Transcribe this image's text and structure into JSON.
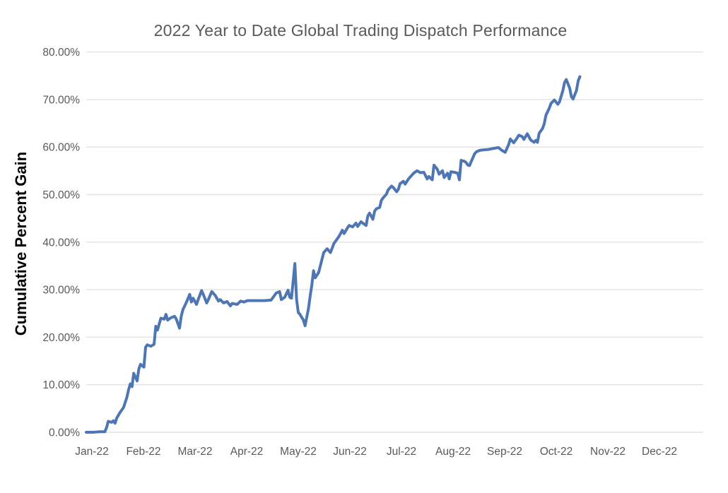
{
  "chart": {
    "title": "2022 Year to Date Global Trading Dispatch Performance",
    "y_axis_title": "Cumulative Percent Gain"
  },
  "chart_data": {
    "type": "line",
    "title": "2022 Year to Date Global Trading Dispatch Performance",
    "xlabel": "",
    "ylabel": "Cumulative Percent Gain",
    "x_tick_labels": [
      "Jan-22",
      "Feb-22",
      "Mar-22",
      "Apr-22",
      "May-22",
      "Jun-22",
      "Jul-22",
      "Aug-22",
      "Sep-22",
      "Oct-22",
      "Nov-22",
      "Dec-22"
    ],
    "y_tick_labels": [
      "0.00%",
      "10.00%",
      "20.00%",
      "30.00%",
      "40.00%",
      "50.00%",
      "60.00%",
      "70.00%",
      "80.00%"
    ],
    "ylim": [
      0,
      80
    ],
    "y_tick_step": 10,
    "grid": "horizontal",
    "legend": "none",
    "colors": {
      "line": "#4D76B2",
      "gridline": "#E2E2E2",
      "axis_text": "#595959",
      "title_text": "#595959",
      "background": "#FFFFFF"
    },
    "series": [
      {
        "name": "Cumulative Percent Gain",
        "x_unit": "days since Jan 1 2022",
        "y_unit": "percent",
        "points": [
          [
            0,
            0
          ],
          [
            4,
            0
          ],
          [
            8,
            0.1
          ],
          [
            11,
            0.1
          ],
          [
            12,
            1.0
          ],
          [
            13,
            2.3
          ],
          [
            15,
            2.1
          ],
          [
            16,
            2.4
          ],
          [
            17,
            1.9
          ],
          [
            18,
            3.0
          ],
          [
            20,
            4.2
          ],
          [
            22,
            5.2
          ],
          [
            23,
            6.3
          ],
          [
            24,
            7.4
          ],
          [
            25,
            9.0
          ],
          [
            26,
            10.2
          ],
          [
            27,
            9.6
          ],
          [
            28,
            12.4
          ],
          [
            30,
            10.8
          ],
          [
            31,
            13.3
          ],
          [
            32,
            14.3
          ],
          [
            34,
            13.7
          ],
          [
            35,
            17.9
          ],
          [
            36,
            18.4
          ],
          [
            38,
            18.1
          ],
          [
            40,
            18.5
          ],
          [
            41,
            22.3
          ],
          [
            42,
            21.5
          ],
          [
            44,
            24.0
          ],
          [
            46,
            23.8
          ],
          [
            47,
            24.8
          ],
          [
            48,
            23.6
          ],
          [
            50,
            24.1
          ],
          [
            52,
            24.4
          ],
          [
            53,
            23.9
          ],
          [
            55,
            21.9
          ],
          [
            56,
            24.4
          ],
          [
            57,
            25.8
          ],
          [
            59,
            27.3
          ],
          [
            61,
            29.0
          ],
          [
            62,
            27.4
          ],
          [
            63,
            28.2
          ],
          [
            65,
            26.9
          ],
          [
            66,
            27.9
          ],
          [
            68,
            29.8
          ],
          [
            69,
            29.0
          ],
          [
            71,
            27.2
          ],
          [
            72,
            27.9
          ],
          [
            74,
            29.6
          ],
          [
            76,
            28.8
          ],
          [
            78,
            27.6
          ],
          [
            79,
            27.9
          ],
          [
            81,
            27.2
          ],
          [
            83,
            27.5
          ],
          [
            85,
            26.6
          ],
          [
            86,
            27.1
          ],
          [
            89,
            26.9
          ],
          [
            91,
            27.6
          ],
          [
            93,
            27.4
          ],
          [
            95,
            27.7
          ],
          [
            100,
            27.7
          ],
          [
            105,
            27.7
          ],
          [
            109,
            27.8
          ],
          [
            112,
            29.3
          ],
          [
            114,
            29.6
          ],
          [
            115,
            27.9
          ],
          [
            117,
            28.4
          ],
          [
            119,
            29.9
          ],
          [
            120,
            28.4
          ],
          [
            121,
            28.2
          ],
          [
            123,
            35.5
          ],
          [
            124,
            28.0
          ],
          [
            125,
            25.2
          ],
          [
            126,
            24.8
          ],
          [
            128,
            23.6
          ],
          [
            129,
            22.4
          ],
          [
            131,
            26.0
          ],
          [
            132,
            28.6
          ],
          [
            133,
            31.0
          ],
          [
            134,
            34.0
          ],
          [
            135,
            32.5
          ],
          [
            137,
            33.6
          ],
          [
            138,
            35.0
          ],
          [
            139,
            36.4
          ],
          [
            140,
            37.8
          ],
          [
            142,
            38.6
          ],
          [
            144,
            37.8
          ],
          [
            146,
            39.7
          ],
          [
            149,
            41.2
          ],
          [
            151,
            42.5
          ],
          [
            152,
            41.8
          ],
          [
            154,
            43.0
          ],
          [
            155,
            43.5
          ],
          [
            157,
            43.2
          ],
          [
            159,
            44.0
          ],
          [
            160,
            43.3
          ],
          [
            162,
            44.3
          ],
          [
            163,
            44.0
          ],
          [
            165,
            43.5
          ],
          [
            166,
            45.5
          ],
          [
            167,
            46.1
          ],
          [
            169,
            44.8
          ],
          [
            170,
            46.5
          ],
          [
            171,
            47.0
          ],
          [
            173,
            47.3
          ],
          [
            174,
            48.8
          ],
          [
            175,
            49.3
          ],
          [
            177,
            50.1
          ],
          [
            178,
            51.0
          ],
          [
            180,
            51.8
          ],
          [
            181,
            51.5
          ],
          [
            183,
            50.6
          ],
          [
            184,
            51.1
          ],
          [
            185,
            52.3
          ],
          [
            187,
            52.8
          ],
          [
            188,
            52.2
          ],
          [
            190,
            53.3
          ],
          [
            193,
            54.5
          ],
          [
            195,
            55.0
          ],
          [
            197,
            54.6
          ],
          [
            199,
            54.7
          ],
          [
            201,
            53.3
          ],
          [
            202,
            53.8
          ],
          [
            204,
            53.1
          ],
          [
            205,
            56.2
          ],
          [
            207,
            55.3
          ],
          [
            208,
            54.3
          ],
          [
            210,
            55.0
          ],
          [
            211,
            53.6
          ],
          [
            213,
            54.5
          ],
          [
            214,
            53.3
          ],
          [
            215,
            54.8
          ],
          [
            217,
            54.7
          ],
          [
            219,
            54.5
          ],
          [
            220,
            53.1
          ],
          [
            221,
            57.2
          ],
          [
            223,
            57.0
          ],
          [
            224,
            56.7
          ],
          [
            225,
            56.2
          ],
          [
            226,
            56.1
          ],
          [
            227,
            57.0
          ],
          [
            229,
            58.6
          ],
          [
            230,
            59.0
          ],
          [
            232,
            59.3
          ],
          [
            234,
            59.4
          ],
          [
            237,
            59.5
          ],
          [
            240,
            59.7
          ],
          [
            243,
            59.9
          ],
          [
            245,
            59.3
          ],
          [
            247,
            58.9
          ],
          [
            249,
            60.5
          ],
          [
            250,
            61.7
          ],
          [
            252,
            60.9
          ],
          [
            254,
            61.9
          ],
          [
            255,
            62.5
          ],
          [
            257,
            62.2
          ],
          [
            258,
            61.6
          ],
          [
            260,
            62.8
          ],
          [
            262,
            61.5
          ],
          [
            264,
            61.0
          ],
          [
            265,
            61.4
          ],
          [
            266,
            61.0
          ],
          [
            267,
            62.9
          ],
          [
            269,
            63.9
          ],
          [
            270,
            64.9
          ],
          [
            271,
            66.7
          ],
          [
            273,
            68.2
          ],
          [
            274,
            69.2
          ],
          [
            276,
            69.9
          ],
          [
            278,
            69.0
          ],
          [
            279,
            69.5
          ],
          [
            281,
            71.9
          ],
          [
            282,
            73.6
          ],
          [
            283,
            74.2
          ],
          [
            285,
            72.4
          ],
          [
            286,
            70.6
          ],
          [
            287,
            70.1
          ],
          [
            289,
            71.9
          ],
          [
            290,
            73.9
          ],
          [
            291,
            74.8
          ]
        ]
      }
    ]
  }
}
